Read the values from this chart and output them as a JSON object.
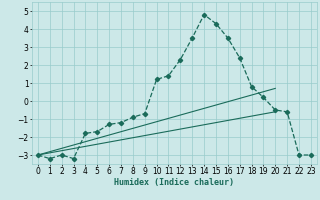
{
  "xlabel": "Humidex (Indice chaleur)",
  "bg_color": "#cce8e8",
  "grid_color": "#99cccc",
  "line_color": "#1a6b5a",
  "xlim": [
    -0.5,
    23.5
  ],
  "ylim": [
    -3.5,
    5.5
  ],
  "yticks": [
    -3,
    -2,
    -1,
    0,
    1,
    2,
    3,
    4,
    5
  ],
  "xticks": [
    0,
    1,
    2,
    3,
    4,
    5,
    6,
    7,
    8,
    9,
    10,
    11,
    12,
    13,
    14,
    15,
    16,
    17,
    18,
    19,
    20,
    21,
    22,
    23
  ],
  "main_x": [
    0,
    1,
    2,
    3,
    4,
    5,
    6,
    7,
    8,
    9,
    10,
    11,
    12,
    13,
    14,
    15,
    16,
    17,
    18,
    19,
    20,
    21,
    22,
    23
  ],
  "main_y": [
    -3.0,
    -3.2,
    -3.0,
    -3.2,
    -1.8,
    -1.7,
    -1.3,
    -1.2,
    -0.9,
    -0.7,
    1.2,
    1.4,
    2.3,
    3.5,
    4.8,
    4.3,
    3.5,
    2.4,
    0.8,
    0.2,
    -0.5,
    -0.6,
    -3.0,
    -3.0
  ],
  "line2_x": [
    0,
    20
  ],
  "line2_y": [
    -3.0,
    -0.6
  ],
  "line3_x": [
    0,
    20
  ],
  "line3_y": [
    -3.0,
    0.7
  ]
}
